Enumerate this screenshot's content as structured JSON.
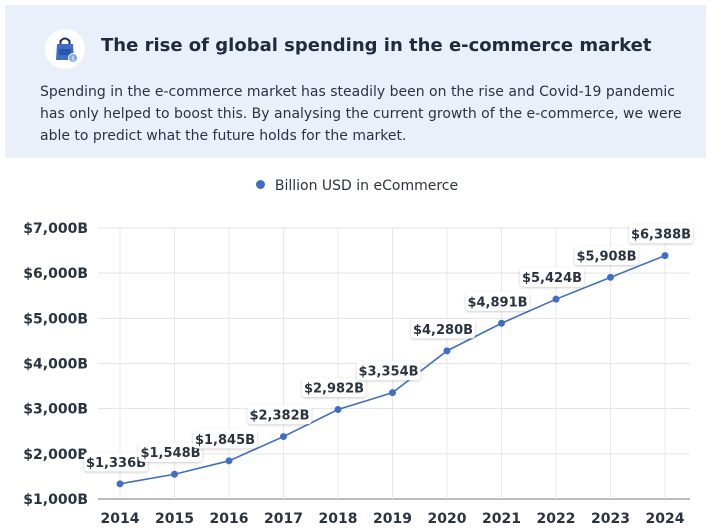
{
  "header": {
    "title": "The rise of global spending in the e-commerce market",
    "description": "Spending in the e-commerce market has steadily been on the rise and Covid-19 pandemic has only helped to boost this. By analysing the current growth of the e-commerce, we were able to predict what the future holds for the market.",
    "icon": "shopping-bag-icon"
  },
  "colors": {
    "header_bg": "#eaf0fa",
    "series": "#3f6fc2",
    "grid": "#e3e3e3"
  },
  "chart_data": {
    "type": "line",
    "title": "",
    "xlabel": "",
    "ylabel": "",
    "legend": {
      "placement": "top-center",
      "entries": [
        "Billion USD in eCommerce"
      ]
    },
    "x": [
      "2014",
      "2015",
      "2016",
      "2017",
      "2018",
      "2019",
      "2020",
      "2021",
      "2022",
      "2023",
      "2024"
    ],
    "series": [
      {
        "name": "Billion USD in eCommerce",
        "values": [
          1336,
          1548,
          1845,
          2382,
          2982,
          3354,
          4280,
          4891,
          5424,
          5908,
          6388
        ],
        "labels": [
          "$1,336B",
          "$1,548B",
          "$1,845B",
          "$2,382B",
          "$2,982B",
          "$3,354B",
          "$4,280B",
          "$4,891B",
          "$5,424B",
          "$5,908B",
          "$6,388B"
        ]
      }
    ],
    "ylim": [
      1000,
      7000
    ],
    "yticks": [
      1000,
      2000,
      3000,
      4000,
      5000,
      6000,
      7000
    ],
    "ytick_labels": [
      "$1,000B",
      "$2,000B",
      "$3,000B",
      "$4,000B",
      "$5,000B",
      "$6,000B",
      "$7,000B"
    ],
    "grid": true
  }
}
